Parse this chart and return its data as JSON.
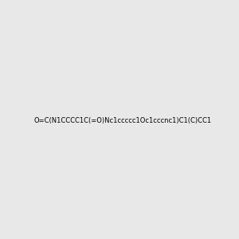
{
  "smiles": "O=C(N1CCCC1C(=O)Nc1ccccc1Oc1cccnc1)C1(C)CC1",
  "image_size": 300,
  "background_color": "#e8e8e8",
  "title": ""
}
